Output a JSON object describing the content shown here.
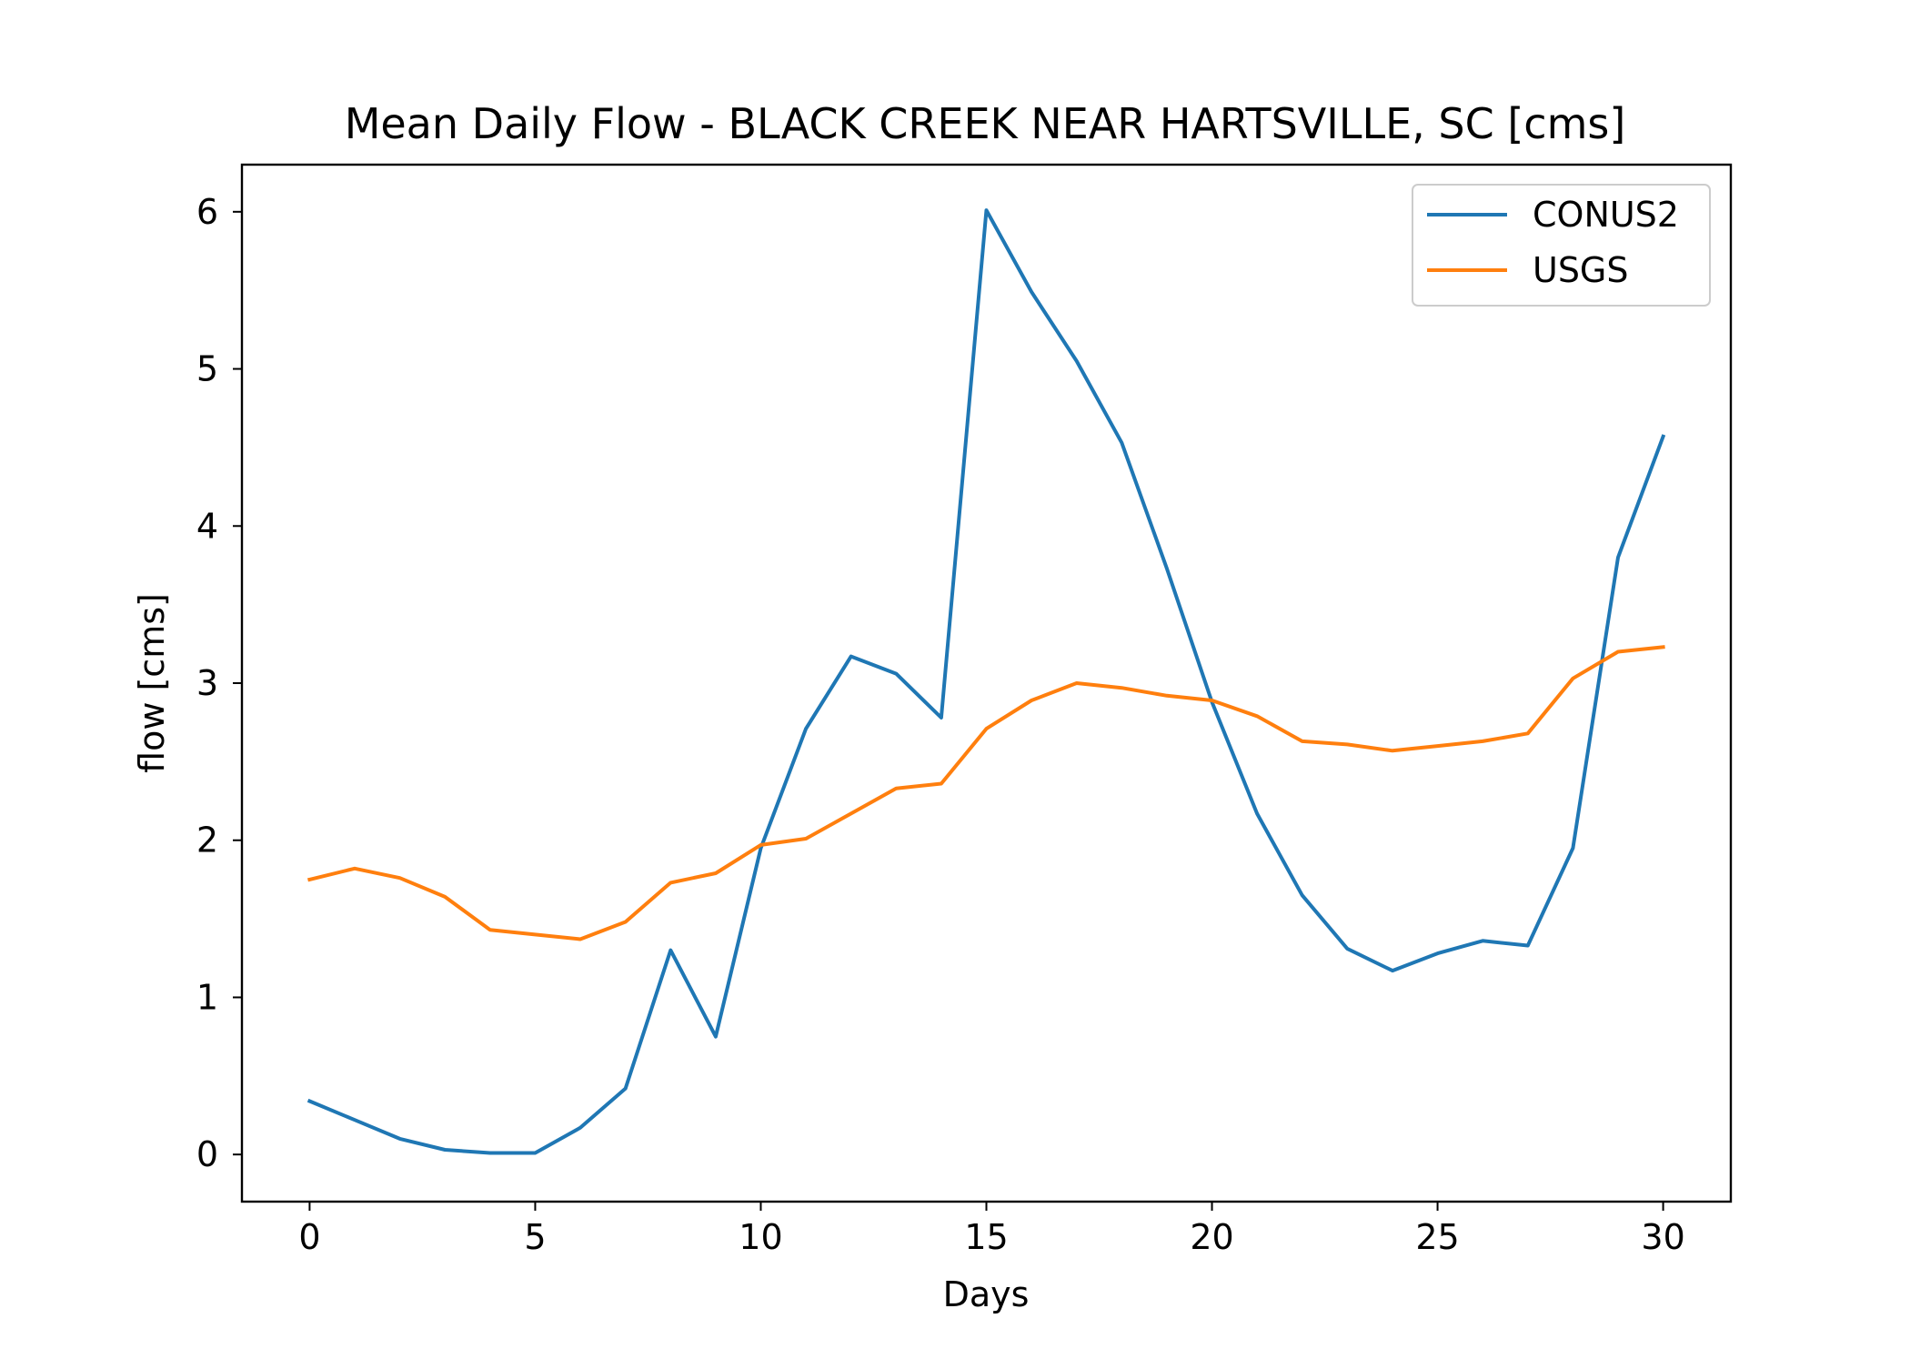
{
  "chart_data": {
    "type": "line",
    "title": "Mean Daily Flow - BLACK CREEK NEAR HARTSVILLE, SC [cms]",
    "xlabel": "Days",
    "ylabel": "flow [cms]",
    "xlim": [
      -1.5,
      31.5
    ],
    "ylim": [
      -0.3,
      6.3
    ],
    "xticks": [
      0,
      5,
      10,
      15,
      20,
      25,
      30
    ],
    "yticks": [
      0,
      1,
      2,
      3,
      4,
      5,
      6
    ],
    "grid": false,
    "legend_position": "top-right",
    "x": [
      0,
      1,
      2,
      3,
      4,
      5,
      6,
      7,
      8,
      9,
      10,
      11,
      12,
      13,
      14,
      15,
      16,
      17,
      18,
      19,
      20,
      21,
      22,
      23,
      24,
      25,
      26,
      27,
      28,
      29,
      30
    ],
    "series": [
      {
        "name": "CONUS2",
        "color": "#1f77b4",
        "values": [
          0.34,
          0.22,
          0.1,
          0.03,
          0.01,
          0.01,
          0.17,
          0.42,
          1.3,
          0.75,
          1.95,
          2.71,
          3.17,
          3.06,
          2.78,
          6.01,
          5.49,
          5.05,
          4.53,
          3.73,
          2.88,
          2.17,
          1.65,
          1.31,
          1.17,
          1.28,
          1.36,
          1.33,
          1.95,
          3.8,
          4.57
        ]
      },
      {
        "name": "USGS",
        "color": "#ff7f0e",
        "values": [
          1.75,
          1.82,
          1.76,
          1.64,
          1.43,
          1.4,
          1.37,
          1.48,
          1.73,
          1.79,
          1.97,
          2.01,
          2.17,
          2.33,
          2.36,
          2.71,
          2.89,
          3.0,
          2.97,
          2.92,
          2.89,
          2.79,
          2.63,
          2.61,
          2.57,
          2.6,
          2.63,
          2.68,
          3.03,
          3.2,
          3.23
        ]
      }
    ]
  }
}
